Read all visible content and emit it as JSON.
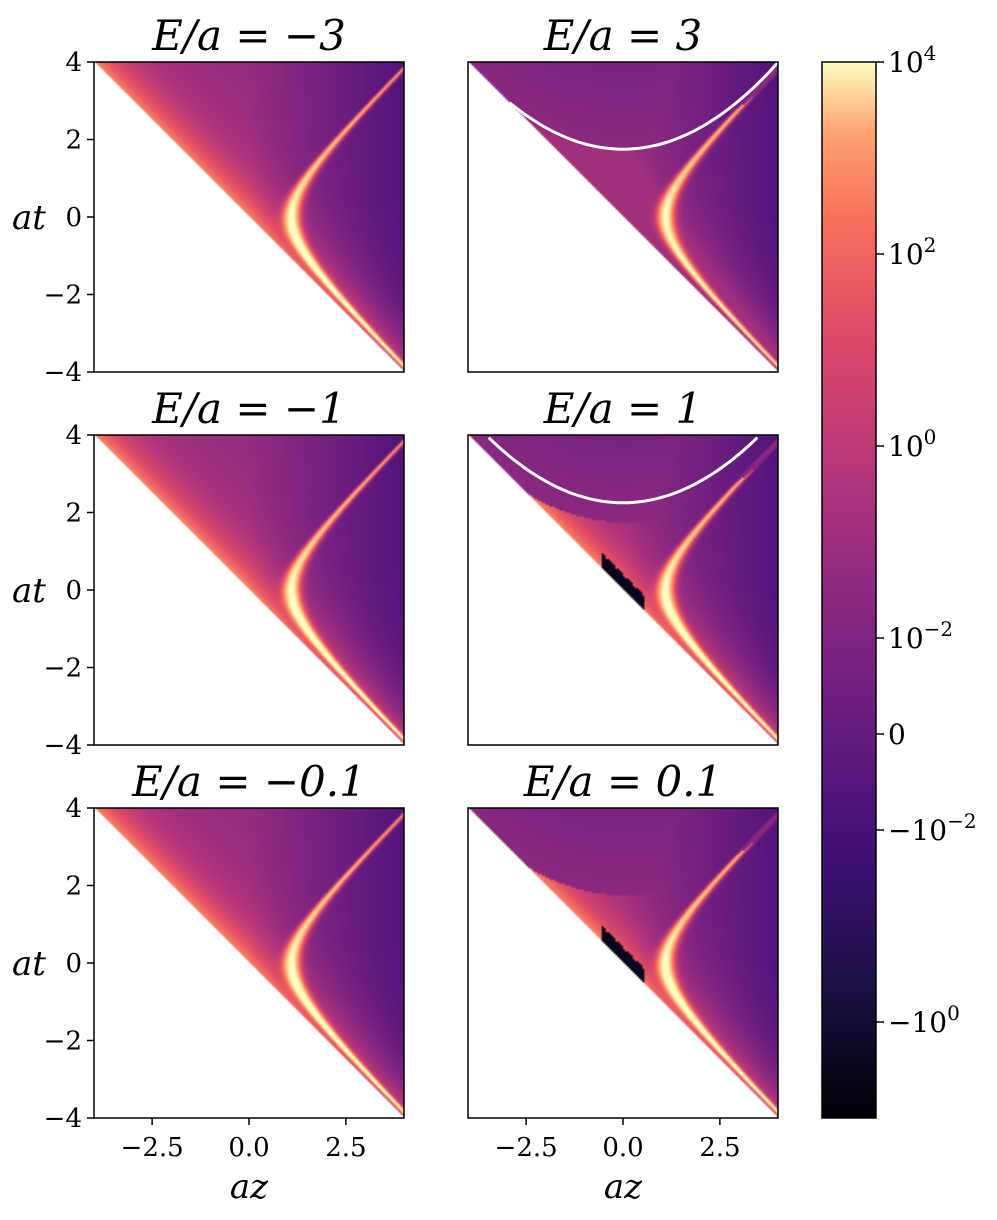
{
  "chart_data": {
    "type": "heatmap",
    "colormap": "magma",
    "xlabel": "az",
    "ylabel": "at",
    "xlim": [
      -4,
      4
    ],
    "ylim": [
      -4,
      4
    ],
    "xticks": [
      -2.5,
      0.0,
      2.5
    ],
    "xtick_labels": [
      "−2.5",
      "0.0",
      "2.5"
    ],
    "yticks": [
      4,
      2,
      0,
      -2,
      -4
    ],
    "ytick_labels": [
      "4",
      "2",
      "0",
      "−2",
      "−4"
    ],
    "colorbar": {
      "scale": "symlog",
      "range": [
        -10,
        10000
      ],
      "ticks": [
        10000,
        100,
        1,
        0.01,
        0,
        -0.01,
        -1
      ],
      "tick_labels": [
        "10^4",
        "10^2",
        "10^0",
        "10^−2",
        "0",
        "−10^−2",
        "−10^0"
      ]
    },
    "panels": [
      {
        "title": "E/a = −3",
        "E_over_a": -3,
        "row": 0,
        "col": 0,
        "white_contour": false,
        "negative_region": false
      },
      {
        "title": "E/a = 3",
        "E_over_a": 3,
        "row": 0,
        "col": 1,
        "white_contour": true,
        "negative_region": false
      },
      {
        "title": "E/a = −1",
        "E_over_a": -1,
        "row": 1,
        "col": 0,
        "white_contour": false,
        "negative_region": false
      },
      {
        "title": "E/a = 1",
        "E_over_a": 1,
        "row": 1,
        "col": 1,
        "white_contour": true,
        "negative_region": true
      },
      {
        "title": "E/a = −0.1",
        "E_over_a": -0.1,
        "row": 2,
        "col": 0,
        "white_contour": false,
        "negative_region": false
      },
      {
        "title": "E/a = 0.1",
        "E_over_a": 0.1,
        "row": 2,
        "col": 1,
        "white_contour": false,
        "negative_region": true
      }
    ]
  }
}
